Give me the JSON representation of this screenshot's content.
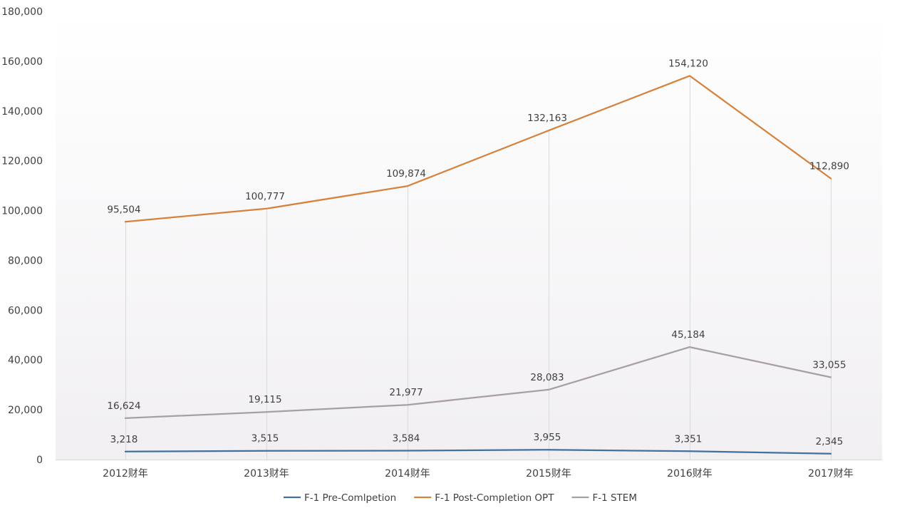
{
  "chart_data": {
    "type": "line",
    "title": "",
    "xlabel": "",
    "ylabel": "",
    "categories": [
      "2012财年",
      "2013财年",
      "2014财年",
      "2015财年",
      "2016财年",
      "2017财年"
    ],
    "ylim": [
      0,
      180000
    ],
    "yticks": [
      0,
      20000,
      40000,
      60000,
      80000,
      100000,
      120000,
      140000,
      160000,
      180000
    ],
    "ytick_labels": [
      "0",
      "20,000",
      "40,000",
      "60,000",
      "80,000",
      "100,000",
      "120,000",
      "140,000",
      "160,000",
      "180,000"
    ],
    "grid": "vertical drop lines at categories",
    "legend_position": "bottom",
    "series": [
      {
        "name": "F-1 Pre-Comlpetion",
        "color": "#41719c",
        "values": [
          3218,
          3515,
          3584,
          3955,
          3351,
          2345
        ],
        "labels": [
          "3,218",
          "3,515",
          "3,584",
          "3,955",
          "3,351",
          "2,345"
        ]
      },
      {
        "name": "F-1 Post-Completion OPT",
        "color": "#d6823d",
        "values": [
          95504,
          100777,
          109874,
          132163,
          154120,
          112890
        ],
        "labels": [
          "95,504",
          "100,777",
          "109,874",
          "132,163",
          "154,120",
          "112,890"
        ]
      },
      {
        "name": "F-1 STEM",
        "color": "#a69fa6",
        "values": [
          16624,
          19115,
          21977,
          28083,
          45184,
          33055
        ],
        "labels": [
          "16,624",
          "19,115",
          "21,977",
          "28,083",
          "45,184",
          "33,055"
        ]
      }
    ]
  }
}
